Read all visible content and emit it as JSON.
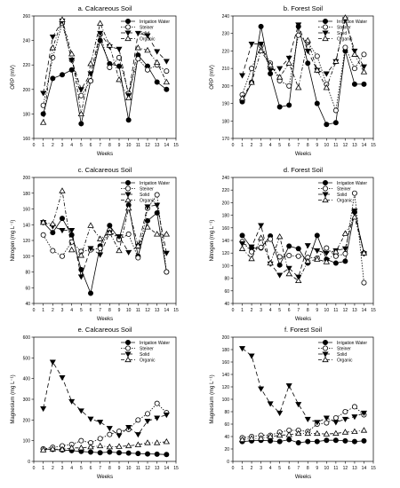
{
  "chart_data": [
    {
      "type": "line",
      "title": "a. Calcareous Soil",
      "xlabel": "Weeks",
      "ylabel": "ORP (mV)",
      "xlim": [
        0,
        15
      ],
      "ylim": [
        160,
        260
      ],
      "xticks": [
        0,
        1,
        2,
        3,
        4,
        5,
        6,
        7,
        8,
        9,
        10,
        11,
        12,
        13,
        14,
        15
      ],
      "yticks": [
        160,
        180,
        200,
        220,
        240,
        260
      ],
      "x": [
        1,
        2,
        3,
        4,
        5,
        6,
        7,
        8,
        9,
        10,
        11,
        12,
        13,
        14
      ],
      "legend": {
        "position": "top-right"
      },
      "series": [
        {
          "name": "Irrigation Water",
          "values": [
            180,
            209,
            212,
            216,
            172,
            207,
            240,
            221,
            219,
            175,
            228,
            219,
            206,
            200
          ]
        },
        {
          "name": "Steiner",
          "values": [
            187,
            226,
            254,
            224,
            195,
            207,
            245,
            218,
            226,
            197,
            225,
            216,
            220,
            215
          ]
        },
        {
          "name": "Solid",
          "values": [
            197,
            243,
            256,
            224,
            200,
            213,
            246,
            235,
            233,
            195,
            246,
            244,
            231,
            223
          ]
        },
        {
          "name": "Organic",
          "values": [
            173,
            234,
            257,
            229,
            180,
            221,
            254,
            236,
            208,
            193,
            234,
            232,
            222,
            206
          ]
        }
      ]
    },
    {
      "type": "line",
      "title": "b. Forest Soil",
      "xlabel": "Weeks",
      "ylabel": "ORP (mV)",
      "xlim": [
        0,
        15
      ],
      "ylim": [
        170,
        240
      ],
      "xticks": [
        0,
        1,
        2,
        3,
        4,
        5,
        6,
        7,
        8,
        9,
        10,
        11,
        12,
        13,
        14,
        15
      ],
      "yticks": [
        170,
        180,
        190,
        200,
        210,
        220,
        230,
        240
      ],
      "x": [
        1,
        2,
        3,
        4,
        5,
        6,
        7,
        8,
        9,
        10,
        11,
        12,
        13,
        14
      ],
      "legend": {
        "position": "top-right"
      },
      "series": [
        {
          "name": "Irrigation Water",
          "values": [
            191,
            202,
            234,
            207,
            188,
            189,
            234,
            213,
            190,
            178,
            179,
            220,
            201,
            201
          ]
        },
        {
          "name": "Steiner",
          "values": [
            195,
            210,
            223,
            213,
            203,
            200,
            229,
            225,
            217,
            201,
            186,
            222,
            210,
            218
          ]
        },
        {
          "name": "Solid",
          "values": [
            206,
            224,
            224,
            209,
            210,
            216,
            235,
            220,
            209,
            207,
            214,
            238,
            220,
            211
          ]
        },
        {
          "name": "Organic",
          "values": [
            193,
            202,
            220,
            212,
            205,
            213,
            199,
            226,
            209,
            199,
            214,
            239,
            218,
            208
          ]
        }
      ]
    },
    {
      "type": "line",
      "title": "c. Calcareous Soil",
      "xlabel": "Weeks",
      "ylabel": "Nitrogen (mg L⁻¹)",
      "xlim": [
        0,
        15
      ],
      "ylim": [
        40,
        200
      ],
      "xticks": [
        0,
        1,
        2,
        3,
        4,
        5,
        6,
        7,
        8,
        9,
        10,
        11,
        12,
        13,
        14,
        15
      ],
      "yticks": [
        40,
        60,
        80,
        100,
        120,
        140,
        160,
        180,
        200
      ],
      "x": [
        1,
        2,
        3,
        4,
        5,
        6,
        7,
        8,
        9,
        10,
        11,
        12,
        13,
        14
      ],
      "legend": {
        "position": "top-right"
      },
      "series": [
        {
          "name": "Irrigation Water",
          "values": [
            143,
            130,
            148,
            127,
            83,
            53,
            113,
            139,
            122,
            165,
            100,
            145,
            155,
            80
          ]
        },
        {
          "name": "Steiner",
          "values": [
            127,
            107,
            100,
            118,
            106,
            108,
            110,
            133,
            121,
            128,
            98,
            161,
            178,
            80
          ]
        },
        {
          "name": "Solid",
          "values": [
            143,
            138,
            133,
            133,
            74,
            110,
            102,
            130,
            125,
            105,
            113,
            163,
            165,
            104
          ]
        },
        {
          "name": "Organic",
          "values": [
            143,
            141,
            183,
            108,
            101,
            139,
            122,
            130,
            107,
            161,
            113,
            137,
            128,
            128
          ]
        }
      ]
    },
    {
      "type": "line",
      "title": "d. Forest Soil",
      "xlabel": "Weeks",
      "ylabel": "Nitrogen (mg L⁻¹)",
      "xlim": [
        0,
        15
      ],
      "ylim": [
        40,
        240
      ],
      "xticks": [
        0,
        1,
        2,
        3,
        4,
        5,
        6,
        7,
        8,
        9,
        10,
        11,
        12,
        13,
        14,
        15
      ],
      "yticks": [
        40,
        60,
        80,
        100,
        120,
        140,
        160,
        180,
        200,
        220,
        240
      ],
      "x": [
        1,
        2,
        3,
        4,
        5,
        6,
        7,
        8,
        9,
        10,
        11,
        12,
        13,
        14
      ],
      "legend": {
        "position": "top-right"
      },
      "series": [
        {
          "name": "Irrigation Water",
          "values": [
            148,
            128,
            128,
            147,
            101,
            131,
            127,
            104,
            148,
            110,
            104,
            107,
            185,
            120
          ]
        },
        {
          "name": "Steiner",
          "values": [
            138,
            122,
            129,
            142,
            114,
            116,
            115,
            113,
            112,
            128,
            115,
            119,
            215,
            73
          ]
        },
        {
          "name": "Solid",
          "values": [
            135,
            130,
            164,
            103,
            85,
            96,
            82,
            132,
            124,
            120,
            124,
            127,
            187,
            119
          ]
        },
        {
          "name": "Organic",
          "values": [
            127,
            111,
            144,
            104,
            146,
            87,
            76,
            107,
            110,
            106,
            122,
            151,
            177,
            120
          ]
        }
      ]
    },
    {
      "type": "line",
      "title": "e. Calcareous Soil",
      "xlabel": "Weeks",
      "ylabel": "Magnesium (mg L⁻¹)",
      "xlim": [
        0,
        15
      ],
      "ylim": [
        0,
        600
      ],
      "xticks": [
        0,
        1,
        2,
        3,
        4,
        5,
        6,
        7,
        8,
        9,
        10,
        11,
        12,
        13,
        14,
        15
      ],
      "yticks": [
        0,
        100,
        200,
        300,
        400,
        500,
        600
      ],
      "x": [
        1,
        2,
        3,
        4,
        5,
        6,
        7,
        8,
        9,
        10,
        11,
        12,
        13,
        14
      ],
      "legend": {
        "position": "top-right"
      },
      "series": [
        {
          "name": "Irrigation Water",
          "values": [
            60,
            58,
            55,
            52,
            48,
            45,
            42,
            45,
            42,
            40,
            38,
            36,
            35,
            33
          ]
        },
        {
          "name": "Steiner",
          "values": [
            60,
            68,
            75,
            82,
            100,
            90,
            110,
            130,
            145,
            155,
            200,
            230,
            280,
            235
          ]
        },
        {
          "name": "Solid",
          "values": [
            255,
            480,
            405,
            290,
            245,
            205,
            190,
            160,
            125,
            165,
            130,
            195,
            210,
            225
          ]
        },
        {
          "name": "Organic",
          "values": [
            55,
            60,
            58,
            65,
            65,
            70,
            75,
            70,
            72,
            75,
            80,
            90,
            90,
            95
          ]
        }
      ]
    },
    {
      "type": "line",
      "title": "f. Forest Soil",
      "xlabel": "Weeks",
      "ylabel": "Magnesium (mg L⁻¹)",
      "xlim": [
        0,
        15
      ],
      "ylim": [
        0,
        200
      ],
      "xticks": [
        0,
        1,
        2,
        3,
        4,
        5,
        6,
        7,
        8,
        9,
        10,
        11,
        12,
        13,
        14,
        15
      ],
      "yticks": [
        0,
        20,
        40,
        60,
        80,
        100,
        120,
        140,
        160,
        180,
        200
      ],
      "x": [
        1,
        2,
        3,
        4,
        5,
        6,
        7,
        8,
        9,
        10,
        11,
        12,
        13,
        14
      ],
      "legend": {
        "position": "top-right"
      },
      "series": [
        {
          "name": "Irrigation Water",
          "values": [
            32,
            33,
            34,
            33,
            32,
            35,
            30,
            32,
            32,
            34,
            34,
            33,
            32,
            33
          ]
        },
        {
          "name": "Steiner",
          "values": [
            38,
            40,
            42,
            42,
            47,
            50,
            50,
            48,
            60,
            62,
            70,
            80,
            88,
            75
          ]
        },
        {
          "name": "Solid",
          "values": [
            182,
            170,
            117,
            93,
            78,
            122,
            92,
            68,
            63,
            70,
            63,
            68,
            72,
            78
          ]
        },
        {
          "name": "Organic",
          "values": [
            35,
            37,
            37,
            40,
            42,
            43,
            45,
            45,
            45,
            44,
            45,
            47,
            48,
            50
          ]
        }
      ]
    }
  ]
}
